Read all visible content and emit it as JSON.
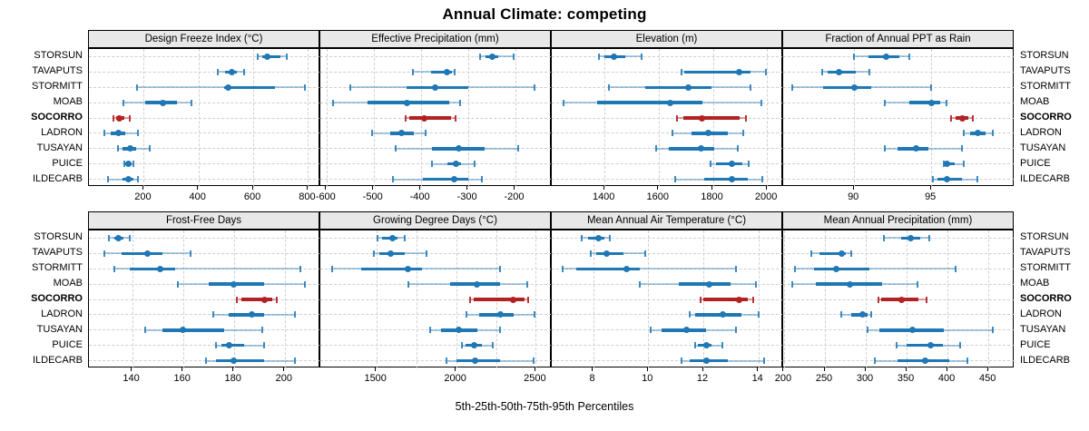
{
  "title": "Annual Climate: competing",
  "caption": "5th-25th-50th-75th-95th Percentiles",
  "colors": {
    "series": "#1f77b4",
    "series_light": "rgba(31,119,180,0.38)",
    "series_cap": "rgba(31,119,180,0.85)",
    "highlight": "#b22222",
    "highlight_light": "rgba(178,34,34,0.42)",
    "highlight_cap": "rgba(178,34,34,0.9)",
    "grid": "#cfcfcf",
    "strip_bg": "#e8e8e8",
    "border": "#000000"
  },
  "chart_data": {
    "type": "dotplot-percentiles",
    "percentile_labels": [
      "5th",
      "25th",
      "50th",
      "75th",
      "95th"
    ],
    "legend_position": "none",
    "grid": "dashed",
    "sites": [
      "STORSUN",
      "TAVAPUTS",
      "STORMITT",
      "MOAB",
      "SOCORRO",
      "LADRON",
      "TUSAYAN",
      "PUICE",
      "ILDECARB"
    ],
    "highlight_site": "SOCORRO",
    "panels": [
      {
        "title": "Design Freeze Index (°C)",
        "xlim": [
          0,
          845
        ],
        "ticks": [
          200,
          400,
          600,
          800
        ],
        "series": [
          [
            617,
            632,
            650,
            700,
            721
          ],
          [
            470,
            497,
            522,
            541,
            567
          ],
          [
            175,
            495,
            510,
            680,
            790
          ],
          [
            125,
            205,
            270,
            320,
            375
          ],
          [
            90,
            100,
            112,
            130,
            150
          ],
          [
            57,
            79,
            107,
            134,
            178
          ],
          [
            107,
            123,
            150,
            172,
            222
          ],
          [
            128,
            134,
            145,
            156,
            162
          ],
          [
            68,
            122,
            145,
            162,
            178
          ]
        ]
      },
      {
        "title": "Effective Precipitation (mm)",
        "xlim": [
          -613,
          -122
        ],
        "ticks": [
          -600,
          -500,
          -400,
          -300,
          -200
        ],
        "series": [
          [
            -275,
            -262,
            -249,
            -235,
            -203
          ],
          [
            -417,
            -379,
            -344,
            -334,
            -328
          ],
          [
            -549,
            -430,
            -370,
            -299,
            -158
          ],
          [
            -587,
            -513,
            -429,
            -340,
            -317
          ],
          [
            -432,
            -424,
            -393,
            -336,
            -326
          ],
          [
            -503,
            -465,
            -441,
            -414,
            -390
          ],
          [
            -453,
            -376,
            -319,
            -264,
            -193
          ],
          [
            -377,
            -344,
            -326,
            -315,
            -286
          ],
          [
            -459,
            -395,
            -329,
            -299,
            -270
          ]
        ]
      },
      {
        "title": "Elevation (m)",
        "xlim": [
          1205,
          2060
        ],
        "ticks": [
          1400,
          1600,
          1800,
          2000
        ],
        "series": [
          [
            1378,
            1400,
            1436,
            1478,
            1537
          ],
          [
            1683,
            1695,
            1897,
            1939,
            1997
          ],
          [
            1417,
            1550,
            1708,
            1794,
            1939
          ],
          [
            1250,
            1372,
            1644,
            1761,
            1978
          ],
          [
            1667,
            1690,
            1761,
            1900,
            1922
          ],
          [
            1650,
            1722,
            1783,
            1856,
            1911
          ],
          [
            1589,
            1639,
            1756,
            1806,
            1892
          ],
          [
            1792,
            1811,
            1872,
            1911,
            1933
          ],
          [
            1661,
            1767,
            1870,
            1928,
            1983
          ]
        ]
      },
      {
        "title": "Fraction of Annual PPT as Rain",
        "xlim": [
          85.4,
          100.4
        ],
        "ticks": [
          90,
          95
        ],
        "series": [
          [
            90.0,
            90.9,
            92.1,
            92.9,
            93.6
          ],
          [
            87.9,
            88.3,
            89.0,
            90.1,
            91.0
          ],
          [
            86.0,
            88.0,
            90.0,
            91.1,
            95.0
          ],
          [
            92.0,
            93.6,
            95.0,
            95.6,
            96.0
          ],
          [
            96.3,
            96.6,
            97.0,
            97.4,
            97.7
          ],
          [
            97.1,
            97.5,
            98.0,
            98.5,
            99.0
          ],
          [
            92.0,
            92.8,
            94.0,
            94.8,
            97.0
          ],
          [
            95.8,
            95.9,
            96.0,
            96.5,
            97.1
          ],
          [
            95.1,
            95.4,
            96.0,
            97.0,
            98.0
          ]
        ]
      },
      {
        "title": "Frost-Free Days",
        "xlim": [
          123,
          214
        ],
        "ticks": [
          140,
          160,
          180,
          200
        ],
        "series": [
          [
            131,
            133,
            134.5,
            136.5,
            139
          ],
          [
            129,
            136,
            146,
            152,
            163
          ],
          [
            133,
            139,
            151,
            157,
            206
          ],
          [
            158,
            170,
            180,
            192,
            208
          ],
          [
            181,
            183,
            192,
            195,
            197
          ],
          [
            172,
            178,
            187,
            192,
            204
          ],
          [
            145,
            152,
            160,
            176,
            191
          ],
          [
            173,
            175,
            178,
            184,
            192
          ],
          [
            169,
            173,
            180,
            192,
            204
          ]
        ]
      },
      {
        "title": "Growing Degree Days (°C)",
        "xlim": [
          1149,
          2600
        ],
        "ticks": [
          1500,
          2000,
          2500
        ],
        "gridlines": [
          1500,
          1750,
          2000,
          2250,
          2500
        ],
        "series": [
          [
            1510,
            1538,
            1600,
            1633,
            1677
          ],
          [
            1487,
            1519,
            1590,
            1680,
            1813
          ],
          [
            1225,
            1405,
            1695,
            1785,
            2274
          ],
          [
            1700,
            1965,
            2132,
            2278,
            2445
          ],
          [
            2088,
            2110,
            2358,
            2430,
            2449
          ],
          [
            2064,
            2145,
            2278,
            2363,
            2490
          ],
          [
            1836,
            1908,
            2018,
            2136,
            2274
          ],
          [
            2037,
            2060,
            2113,
            2164,
            2231
          ],
          [
            1942,
            2003,
            2120,
            2278,
            2487
          ]
        ]
      },
      {
        "title": "Mean Annual Air Temperature (°C)",
        "xlim": [
          6.5,
          14.9
        ],
        "ticks": [
          8,
          10,
          12,
          14
        ],
        "series": [
          [
            7.6,
            7.8,
            8.2,
            8.4,
            8.6
          ],
          [
            7.9,
            8.1,
            8.5,
            9.1,
            9.9
          ],
          [
            6.9,
            7.4,
            9.2,
            9.7,
            13.2
          ],
          [
            9.7,
            11.1,
            12.2,
            13.0,
            13.9
          ],
          [
            11.9,
            12.0,
            13.3,
            13.6,
            13.8
          ],
          [
            11.5,
            11.7,
            12.7,
            13.4,
            14.0
          ],
          [
            10.1,
            10.5,
            11.4,
            12.1,
            13.2
          ],
          [
            11.7,
            11.8,
            12.1,
            12.3,
            12.7
          ],
          [
            11.2,
            11.5,
            12.1,
            12.9,
            14.2
          ]
        ]
      },
      {
        "title": "Mean Annual Precipitation (mm)",
        "xlim": [
          199,
          482
        ],
        "ticks": [
          200,
          250,
          300,
          350,
          400,
          450
        ],
        "series": [
          [
            322,
            343,
            355,
            367,
            378
          ],
          [
            233,
            243,
            270,
            276,
            282
          ],
          [
            213,
            237,
            264,
            304,
            410
          ],
          [
            210,
            239,
            280,
            320,
            363
          ],
          [
            315,
            319,
            344,
            365,
            374
          ],
          [
            270,
            282,
            296,
            302,
            307
          ],
          [
            302,
            317,
            357,
            396,
            455
          ],
          [
            338,
            350,
            379,
            394,
            415
          ],
          [
            311,
            339,
            373,
            402,
            424
          ]
        ]
      }
    ]
  }
}
